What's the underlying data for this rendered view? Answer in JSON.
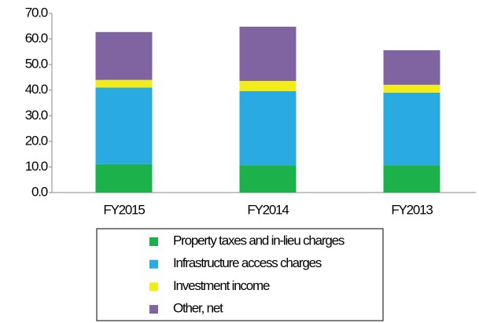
{
  "chart_data": {
    "type": "stacked_bar",
    "categories": [
      "FY2015",
      "FY2014",
      "FY2013"
    ],
    "series": [
      {
        "name": "Property taxes and in-lieu charges",
        "color": "#1db14b",
        "values": [
          11.1,
          10.7,
          10.7
        ]
      },
      {
        "name": "Infrastructure access charges",
        "color": "#29abe2",
        "values": [
          29.9,
          28.9,
          28.3
        ]
      },
      {
        "name": "Investment income",
        "color": "#f2ec1a",
        "values": [
          3.0,
          4.0,
          3.1
        ]
      },
      {
        "name": "Other, net",
        "color": "#8064a2",
        "values": [
          18.7,
          21.2,
          13.5
        ]
      }
    ],
    "ylim": [
      0,
      70
    ],
    "yticks": [
      {
        "value": 0,
        "label": "0.0"
      },
      {
        "value": 10,
        "label": "10.0"
      },
      {
        "value": 20,
        "label": "20.0"
      },
      {
        "value": 30,
        "label": "30.0"
      },
      {
        "value": 40,
        "label": "40.0"
      },
      {
        "value": 50,
        "label": "50.0"
      },
      {
        "value": 60,
        "label": "60.0"
      },
      {
        "value": 70,
        "label": "70.0"
      }
    ],
    "legend": "bottom"
  }
}
